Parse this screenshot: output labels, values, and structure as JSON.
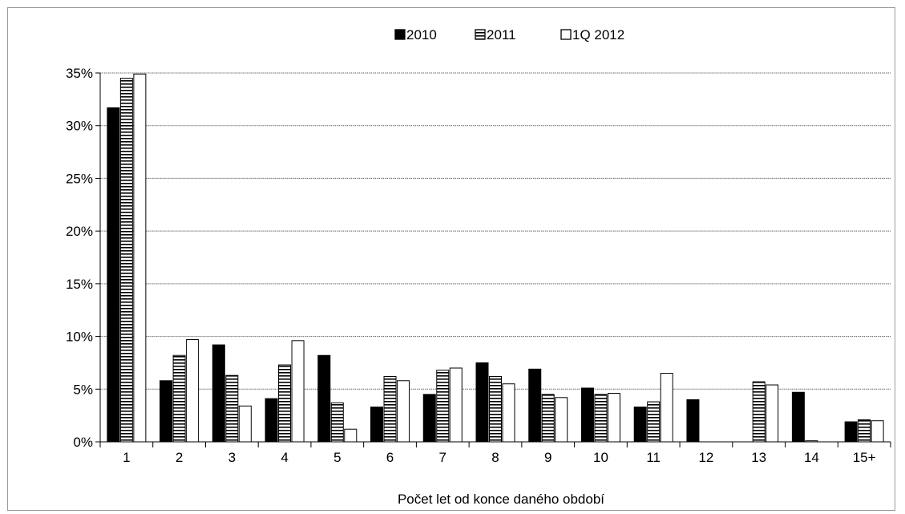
{
  "chart_data": {
    "type": "bar",
    "title": "",
    "xlabel": "Počet let od konce daného období",
    "ylabel": "",
    "ylim": [
      0,
      35
    ],
    "ytick_labels": [
      "0%",
      "5%",
      "10%",
      "15%",
      "20%",
      "25%",
      "30%",
      "35%"
    ],
    "ytick_values": [
      0,
      5,
      10,
      15,
      20,
      25,
      30,
      35
    ],
    "grid": true,
    "legend_position": "top",
    "categories": [
      "1",
      "2",
      "3",
      "4",
      "5",
      "6",
      "7",
      "8",
      "9",
      "10",
      "11",
      "12",
      "13",
      "14",
      "15+"
    ],
    "series": [
      {
        "name": "2010",
        "pattern": "solid",
        "values": [
          31.7,
          5.8,
          9.2,
          4.1,
          8.2,
          3.3,
          4.5,
          7.5,
          6.9,
          5.1,
          3.3,
          4.0,
          0,
          4.7,
          1.9
        ]
      },
      {
        "name": "2011",
        "pattern": "horizontal-stripes",
        "values": [
          34.5,
          8.2,
          6.3,
          7.3,
          3.7,
          6.2,
          6.8,
          6.2,
          4.5,
          4.5,
          3.8,
          0,
          5.7,
          0.1,
          2.1
        ]
      },
      {
        "name": "1Q 2012",
        "pattern": "hollow",
        "values": [
          34.9,
          9.7,
          3.4,
          9.6,
          1.2,
          5.8,
          7.0,
          5.5,
          4.2,
          4.6,
          6.5,
          0,
          5.4,
          0,
          2.0
        ]
      }
    ],
    "colors": {
      "solid": "#000000",
      "outline": "#000000",
      "fill_light": "#ffffff",
      "grid": "#555555"
    }
  }
}
